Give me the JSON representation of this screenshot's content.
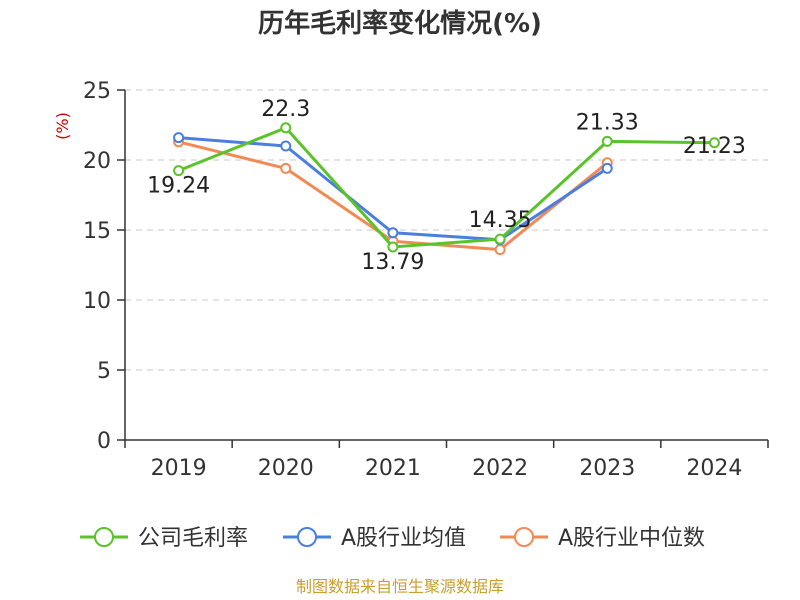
{
  "chart_data": {
    "type": "line",
    "title": "历年毛利率变化情况(%)",
    "ylabel": "(%)",
    "xlabel": "",
    "categories": [
      "2019",
      "2020",
      "2021",
      "2022",
      "2023",
      "2024"
    ],
    "ylim": [
      0,
      25
    ],
    "yticks": [
      0,
      5,
      10,
      15,
      20,
      25
    ],
    "grid": true,
    "legend_position": "bottom",
    "series": [
      {
        "name": "公司毛利率",
        "color": "#5ac32a",
        "values": [
          19.24,
          22.3,
          13.79,
          14.35,
          21.33,
          21.23
        ],
        "labels": [
          "19.24",
          "22.3",
          "13.79",
          "14.35",
          "21.33",
          "21.23"
        ]
      },
      {
        "name": "A股行业均值",
        "color": "#4a7fe0",
        "values": [
          21.6,
          21.0,
          14.8,
          14.3,
          19.4,
          null
        ]
      },
      {
        "name": "A股行业中位数",
        "color": "#f28a55",
        "values": [
          21.3,
          19.4,
          14.2,
          13.6,
          19.8,
          null
        ]
      }
    ]
  },
  "source_note": "制图数据来自恒生聚源数据库"
}
